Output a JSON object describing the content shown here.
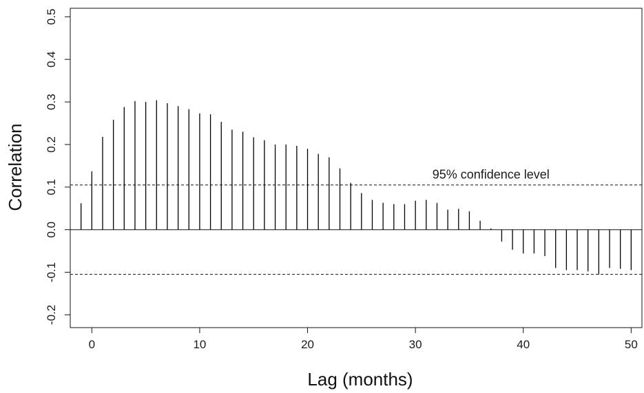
{
  "chart_data": {
    "type": "bar",
    "xlabel": "Lag (months)",
    "ylabel": "Correlation",
    "xlim": [
      -2,
      51
    ],
    "ylim": [
      -0.23,
      0.52
    ],
    "x_ticks": [
      0,
      10,
      20,
      30,
      40,
      50
    ],
    "x_tick_labels": [
      "0",
      "10",
      "20",
      "30",
      "40",
      "50"
    ],
    "y_ticks": [
      -0.2,
      -0.1,
      0.0,
      0.1,
      0.2,
      0.3,
      0.4,
      0.5
    ],
    "y_tick_labels": [
      "-0.2",
      "-0.1",
      "0.0",
      "0.1",
      "0.2",
      "0.3",
      "0.4",
      "0.5"
    ],
    "grid": false,
    "x": [
      -1,
      0,
      1,
      2,
      3,
      4,
      5,
      6,
      7,
      8,
      9,
      10,
      11,
      12,
      13,
      14,
      15,
      16,
      17,
      18,
      19,
      20,
      21,
      22,
      23,
      24,
      25,
      26,
      27,
      28,
      29,
      30,
      31,
      32,
      33,
      34,
      35,
      36,
      37,
      38,
      39,
      40,
      41,
      42,
      43,
      44,
      45,
      46,
      47,
      48,
      49,
      50
    ],
    "values": [
      0.062,
      0.137,
      0.218,
      0.258,
      0.288,
      0.302,
      0.3,
      0.304,
      0.297,
      0.29,
      0.283,
      0.273,
      0.271,
      0.253,
      0.235,
      0.23,
      0.217,
      0.21,
      0.2,
      0.2,
      0.197,
      0.19,
      0.178,
      0.17,
      0.144,
      0.11,
      0.086,
      0.07,
      0.063,
      0.06,
      0.06,
      0.068,
      0.07,
      0.063,
      0.047,
      0.049,
      0.043,
      0.021,
      0.003,
      -0.028,
      -0.047,
      -0.056,
      -0.056,
      -0.062,
      -0.09,
      -0.095,
      -0.095,
      -0.098,
      -0.105,
      -0.09,
      -0.092,
      -0.095
    ],
    "reference_lines": [
      {
        "y": 0.105,
        "style": "dashed"
      },
      {
        "y": -0.105,
        "style": "dashed"
      },
      {
        "y": 0.0,
        "style": "solid"
      }
    ],
    "annotations": [
      {
        "text": "95% confidence level",
        "x": 37,
        "y": 0.12
      }
    ]
  }
}
